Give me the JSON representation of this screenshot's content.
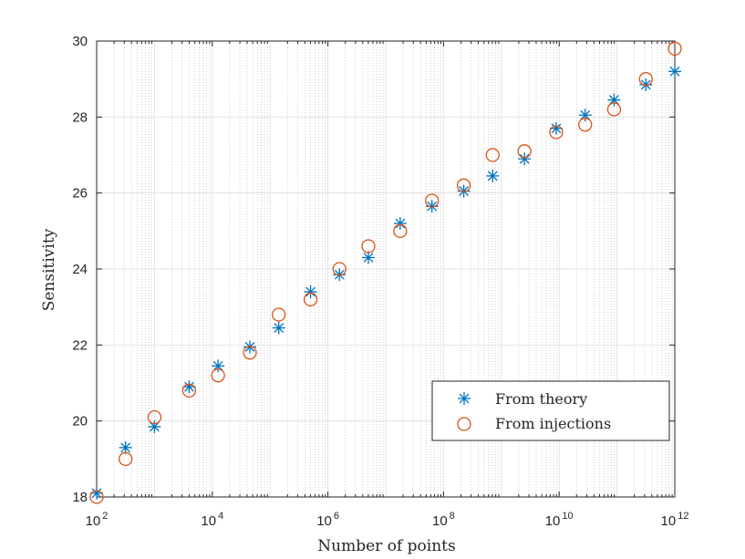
{
  "chart_data": {
    "type": "scatter",
    "title": "",
    "xlabel": "Number of points",
    "ylabel": "Sensitivity",
    "xscale": "log",
    "xlim": [
      100,
      1000000000000
    ],
    "ylim": [
      18,
      30
    ],
    "grid": true,
    "minor_grid": true,
    "legend_position": "bottom-right",
    "x_ticks": [
      {
        "base": "10",
        "exp": "2",
        "value": 100
      },
      {
        "base": "10",
        "exp": "4",
        "value": 10000
      },
      {
        "base": "10",
        "exp": "6",
        "value": 1000000
      },
      {
        "base": "10",
        "exp": "8",
        "value": 100000000
      },
      {
        "base": "10",
        "exp": "10",
        "value": 10000000000
      },
      {
        "base": "10",
        "exp": "12",
        "value": 1000000000000
      }
    ],
    "y_ticks": [
      {
        "label": "18",
        "value": 18
      },
      {
        "label": "20",
        "value": 20
      },
      {
        "label": "22",
        "value": 22
      },
      {
        "label": "24",
        "value": 24
      },
      {
        "label": "26",
        "value": 26
      },
      {
        "label": "28",
        "value": 28
      },
      {
        "label": "30",
        "value": 30
      }
    ],
    "series": [
      {
        "name": "From theory",
        "marker": "asterisk",
        "color": "#0072BD",
        "x": [
          100,
          316,
          1000,
          3981,
          12589,
          44668,
          141254,
          501187,
          1584893,
          5011872,
          17782794,
          63095734,
          223872114,
          707945784,
          2511886432,
          8912509381,
          28183829313,
          89125093813,
          316227766017,
          1000000000000
        ],
        "y": [
          18.1,
          19.3,
          19.85,
          20.9,
          21.45,
          21.95,
          22.45,
          23.4,
          23.85,
          24.3,
          25.2,
          25.65,
          26.05,
          26.45,
          26.9,
          27.7,
          28.05,
          28.45,
          28.85,
          29.2
        ]
      },
      {
        "name": "From injections",
        "marker": "circle",
        "color": "#D95319",
        "x": [
          100,
          316,
          1000,
          3981,
          12589,
          44668,
          141254,
          501187,
          1584893,
          5011872,
          17782794,
          63095734,
          223872114,
          707945784,
          2511886432,
          8912509381,
          28183829313,
          89125093813,
          316227766017,
          1000000000000
        ],
        "y": [
          18.0,
          19.0,
          20.1,
          20.8,
          21.2,
          21.8,
          22.8,
          23.2,
          24.0,
          24.6,
          25.0,
          25.8,
          26.2,
          27.0,
          27.1,
          27.6,
          27.8,
          28.2,
          29.0,
          29.8
        ]
      }
    ]
  }
}
